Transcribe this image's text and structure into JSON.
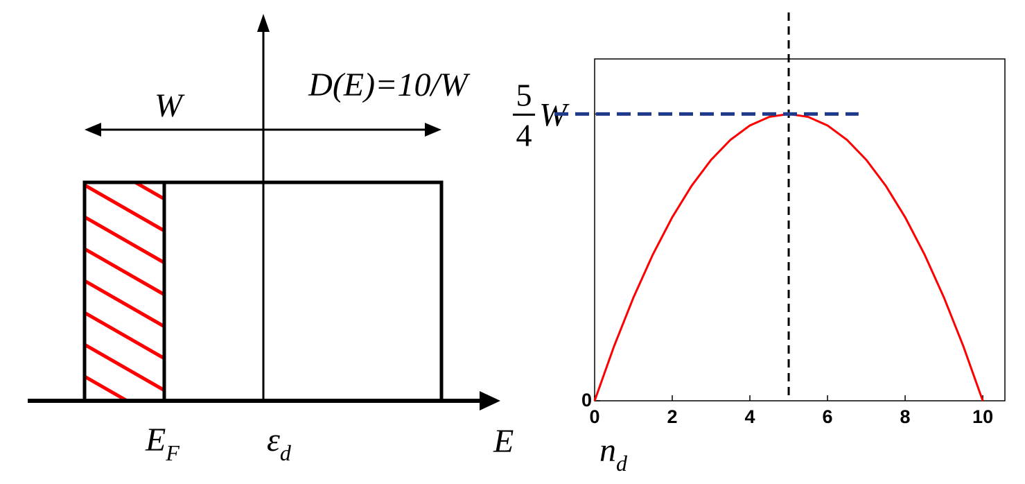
{
  "diagram": {
    "width_label": "W",
    "dos_label": "D(E)=10/W",
    "fermi_label": {
      "text": "E",
      "subscript": "F"
    },
    "center_label": {
      "text": "ε",
      "subscript": "d"
    },
    "axis_label": "E"
  },
  "chart_data": {
    "type": "line",
    "x": [
      0,
      0.5,
      1,
      1.5,
      2,
      2.5,
      3,
      3.5,
      4,
      4.5,
      5,
      5.5,
      6,
      6.5,
      7,
      7.5,
      8,
      8.5,
      9,
      9.5,
      10
    ],
    "series": [
      {
        "color": "#ff0000",
        "values": [
          0,
          0.2375,
          0.45,
          0.6375,
          0.8,
          0.9375,
          1.05,
          1.1375,
          1.2,
          1.2375,
          1.25,
          1.2375,
          1.2,
          1.1375,
          1.05,
          0.9375,
          0.8,
          0.6375,
          0.45,
          0.2375,
          0
        ]
      }
    ],
    "xlabel": {
      "text": "n",
      "subscript": "d"
    },
    "xlim": [
      0,
      10.57
    ],
    "ylim": [
      0,
      1.49
    ],
    "xticks": [
      0,
      2,
      4,
      6,
      8,
      10
    ],
    "yticks": [
      0,
      {
        "value": 1.25,
        "label": {
          "numerator": "5",
          "denominator": "4",
          "symbol": "W"
        }
      }
    ],
    "vline": {
      "value": 5,
      "color": "#000000"
    },
    "hline": {
      "value": 1.25,
      "xmax": 6.8,
      "color": "#1f3a8a"
    }
  }
}
